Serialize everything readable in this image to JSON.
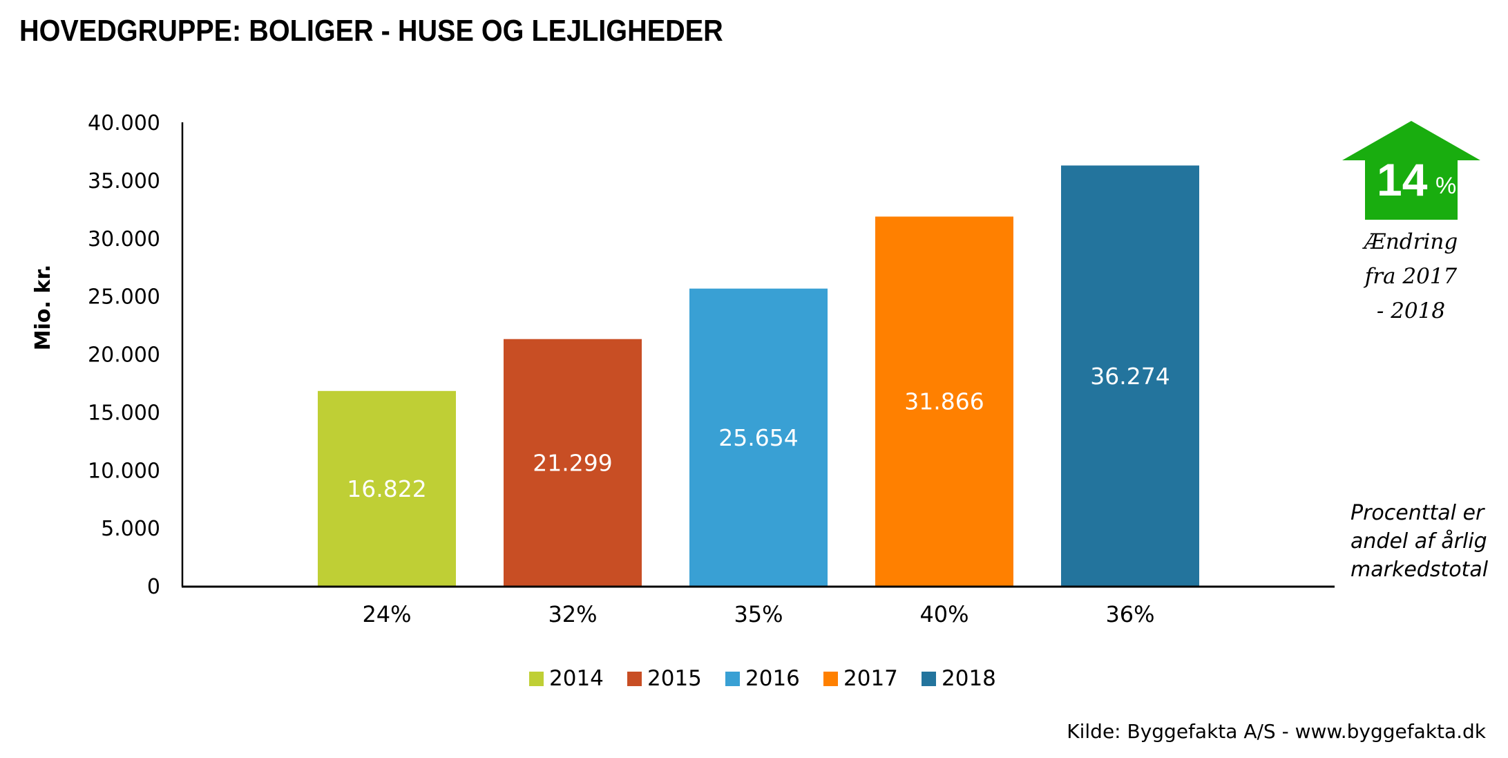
{
  "title": "HOVEDGRUPPE: BOLIGER - HUSE OG LEJLIGHEDER",
  "chart_data": {
    "type": "bar",
    "title": "HOVEDGRUPPE: BOLIGER - HUSE OG LEJLIGHEDER",
    "xlabel": "",
    "ylabel": "Mio. kr.",
    "ylim": [
      0,
      40000
    ],
    "yticks": [
      0,
      5000,
      10000,
      15000,
      20000,
      25000,
      30000,
      35000,
      40000
    ],
    "ytick_labels": [
      "0",
      "5.000",
      "10.000",
      "15.000",
      "20.000",
      "25.000",
      "30.000",
      "35.000",
      "40.000"
    ],
    "grid": false,
    "categories": [
      "2014",
      "2015",
      "2016",
      "2017",
      "2018"
    ],
    "values": [
      16822,
      21299,
      25654,
      31866,
      36274
    ],
    "value_labels": [
      "16.822",
      "21.299",
      "25.654",
      "31.866",
      "36.274"
    ],
    "share_labels": [
      "24%",
      "32%",
      "35%",
      "40%",
      "36%"
    ],
    "colors": [
      "#bfcf35",
      "#c84e24",
      "#39a0d4",
      "#ff8000",
      "#23749d"
    ],
    "legend": {
      "position": "bottom",
      "entries": [
        "2014",
        "2015",
        "2016",
        "2017",
        "2018"
      ]
    }
  },
  "change_badge": {
    "value": "14",
    "unit": "%",
    "color": "#19ad0f",
    "direction": "up",
    "caption_lines": [
      "Ændring",
      "fra 2017",
      "- 2018"
    ]
  },
  "note_lines": [
    "Procenttal er",
    "andel af årlig",
    "markedstotal"
  ],
  "source": "Kilde: Byggefakta A/S - www.byggefakta.dk"
}
